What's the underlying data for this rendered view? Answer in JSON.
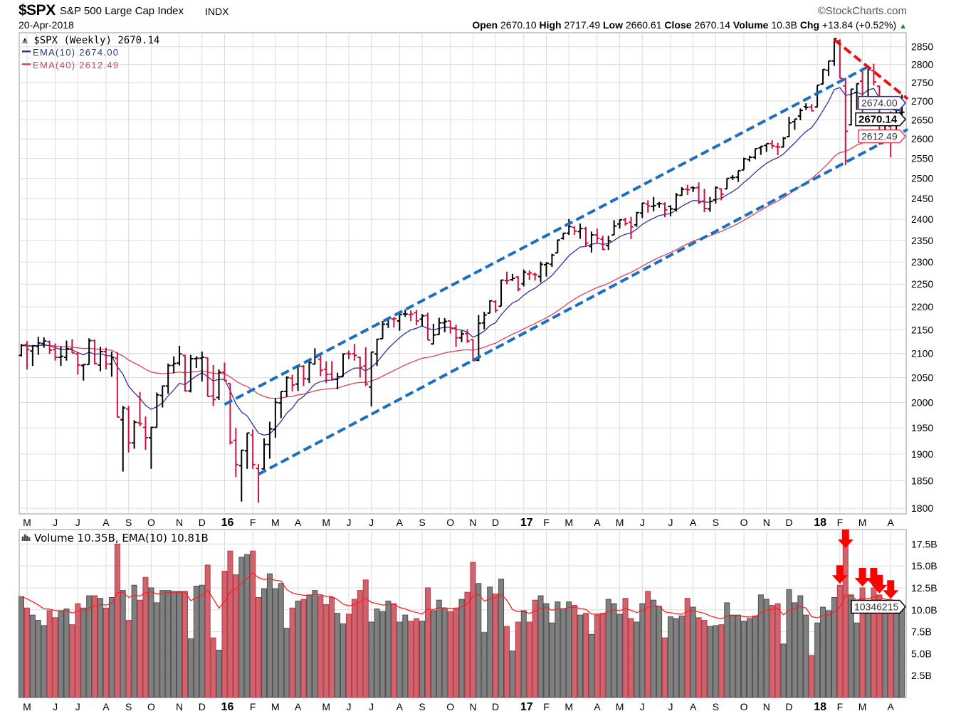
{
  "header": {
    "symbol": "$SPX",
    "name": "S&P 500 Large Cap Index",
    "exchange": "INDX",
    "brand": "©StockCharts.com",
    "date": "20-Apr-2018",
    "stats": [
      {
        "label": "Open",
        "value": "2670.10"
      },
      {
        "label": "High",
        "value": "2717.49"
      },
      {
        "label": "Low",
        "value": "2660.61"
      },
      {
        "label": "Close",
        "value": "2670.14"
      },
      {
        "label": "Volume",
        "value": "10.3B"
      },
      {
        "label": "Chg",
        "value": "+13.84 (+0.52%)"
      }
    ],
    "chg_icon": "up-triangle-icon"
  },
  "colors": {
    "up_bar": "#000000",
    "down_bar": "#d0103a",
    "ema10": "#3030a0",
    "ema40": "#e0405a",
    "vol_up": "#808080",
    "vol_down": "#d0646e",
    "vol_ema": "#ff2020",
    "channel": "#1a6fc0",
    "downtrend": "#e81010",
    "arrow": "#ff0000",
    "grid": "#dcdcdc"
  },
  "chart_data": [
    {
      "type": "ohlc",
      "title": "$SPX (Weekly) 2670.14",
      "legend": [
        {
          "name": "EMA(10)",
          "value": "2674.00",
          "label": "EMA(10) 2674.00"
        },
        {
          "name": "EMA(40)",
          "value": "2612.49",
          "label": "EMA(40) 2612.49"
        }
      ],
      "legend_placement": "top-left",
      "y_scale": "log",
      "ylim": [
        1790,
        2890
      ],
      "y_ticks": [
        1800,
        1850,
        1900,
        1950,
        2000,
        2050,
        2100,
        2150,
        2200,
        2250,
        2300,
        2350,
        2400,
        2450,
        2500,
        2550,
        2600,
        2650,
        2700,
        2750,
        2800,
        2850
      ],
      "grid": true,
      "frequency": "weekly",
      "last_date": "2018-04-20",
      "x_tick_labels": [
        "M",
        "J",
        "J",
        "A",
        "S",
        "O",
        "N",
        "D",
        "16",
        "F",
        "M",
        "A",
        "M",
        "J",
        "J",
        "A",
        "S",
        "O",
        "N",
        "D",
        "17",
        "F",
        "M",
        "A",
        "M",
        "J",
        "J",
        "A",
        "S",
        "O",
        "N",
        "D",
        "18",
        "F",
        "M",
        "A"
      ],
      "first_month": "2015-05",
      "price_tags": [
        {
          "series": "EMA(10)",
          "text": "2674.00"
        },
        {
          "series": "Close",
          "text": "2670.14"
        },
        {
          "series": "EMA(40)",
          "text": "2612.49"
        }
      ],
      "ohlc": [
        [
          2096,
          2120,
          2094,
          2117
        ],
        [
          2119,
          2126,
          2067,
          2108
        ],
        [
          2105,
          2117,
          2074,
          2116
        ],
        [
          2115,
          2135,
          2097,
          2122
        ],
        [
          2121,
          2134,
          2112,
          2126
        ],
        [
          2125,
          2127,
          2099,
          2107
        ],
        [
          2108,
          2121,
          2085,
          2092
        ],
        [
          2092,
          2115,
          2074,
          2094
        ],
        [
          2092,
          2127,
          2085,
          2110
        ],
        [
          2110,
          2130,
          2101,
          2101
        ],
        [
          2099,
          2102,
          2056,
          2076
        ],
        [
          2075,
          2078,
          2044,
          2077
        ],
        [
          2077,
          2132,
          2077,
          2127
        ],
        [
          2127,
          2129,
          2077,
          2079
        ],
        [
          2076,
          2114,
          2063,
          2104
        ],
        [
          2104,
          2112,
          2067,
          2078
        ],
        [
          2078,
          2104,
          2052,
          2092
        ],
        [
          2090,
          2103,
          1971,
          1971
        ],
        [
          1966,
          1993,
          1867,
          1989
        ],
        [
          1987,
          1993,
          1903,
          1921
        ],
        [
          1921,
          1965,
          1910,
          1961
        ],
        [
          1960,
          2021,
          1953,
          1958
        ],
        [
          1951,
          1972,
          1908,
          1931
        ],
        [
          1931,
          1952,
          1872,
          1951
        ],
        [
          1951,
          2020,
          1951,
          2015
        ],
        [
          2014,
          2034,
          1990,
          2033
        ],
        [
          2033,
          2079,
          2017,
          2075
        ],
        [
          2075,
          2094,
          2059,
          2079
        ],
        [
          2080,
          2116,
          2075,
          2099
        ],
        [
          2096,
          2097,
          2022,
          2023
        ],
        [
          2023,
          2097,
          2020,
          2089
        ],
        [
          2089,
          2094,
          2070,
          2090
        ],
        [
          2090,
          2104,
          2042,
          2092
        ],
        [
          2091,
          2091,
          2012,
          2012
        ],
        [
          2013,
          2076,
          1993,
          2006
        ],
        [
          2010,
          2067,
          2005,
          2061
        ],
        [
          2061,
          2081,
          2043,
          2044
        ],
        [
          2038,
          2038,
          1918,
          1922
        ],
        [
          1926,
          1950,
          1857,
          1880
        ],
        [
          1878,
          1908,
          1812,
          1907
        ],
        [
          1906,
          1940,
          1872,
          1940
        ],
        [
          1936,
          1947,
          1872,
          1880
        ],
        [
          1873,
          1881,
          1810,
          1865
        ],
        [
          1872,
          1930,
          1871,
          1918
        ],
        [
          1918,
          1962,
          1891,
          1948
        ],
        [
          1947,
          2009,
          1931,
          2000
        ],
        [
          1999,
          2022,
          1969,
          2022
        ],
        [
          2022,
          2053,
          2011,
          2050
        ],
        [
          2049,
          2056,
          2022,
          2035
        ],
        [
          2037,
          2075,
          2023,
          2073
        ],
        [
          2073,
          2076,
          2033,
          2048
        ],
        [
          2047,
          2084,
          2039,
          2081
        ],
        [
          2078,
          2111,
          2077,
          2092
        ],
        [
          2088,
          2099,
          2053,
          2065
        ],
        [
          2067,
          2084,
          2039,
          2057
        ],
        [
          2057,
          2084,
          2044,
          2047
        ],
        [
          2047,
          2060,
          2026,
          2052
        ],
        [
          2052,
          2100,
          2052,
          2099
        ],
        [
          2100,
          2106,
          2088,
          2099
        ],
        [
          2099,
          2120,
          2085,
          2096
        ],
        [
          2092,
          2093,
          2050,
          2071
        ],
        [
          2074,
          2113,
          2033,
          2037
        ],
        [
          2031,
          2103,
          1992,
          2103
        ],
        [
          2099,
          2131,
          2074,
          2130
        ],
        [
          2131,
          2169,
          2131,
          2162
        ],
        [
          2162,
          2176,
          2154,
          2175
        ],
        [
          2173,
          2178,
          2155,
          2174
        ],
        [
          2169,
          2183,
          2148,
          2183
        ],
        [
          2184,
          2194,
          2178,
          2184
        ],
        [
          2183,
          2192,
          2169,
          2184
        ],
        [
          2187,
          2193,
          2160,
          2169
        ],
        [
          2173,
          2184,
          2157,
          2180
        ],
        [
          2181,
          2187,
          2128,
          2128
        ],
        [
          2120,
          2163,
          2119,
          2139
        ],
        [
          2140,
          2176,
          2139,
          2165
        ],
        [
          2165,
          2175,
          2145,
          2168
        ],
        [
          2169,
          2170,
          2142,
          2153
        ],
        [
          2154,
          2161,
          2114,
          2133
        ],
        [
          2133,
          2148,
          2124,
          2141
        ],
        [
          2142,
          2151,
          2122,
          2126
        ],
        [
          2129,
          2130,
          2084,
          2085
        ],
        [
          2086,
          2182,
          2084,
          2164
        ],
        [
          2165,
          2189,
          2151,
          2182
        ],
        [
          2186,
          2214,
          2186,
          2213
        ],
        [
          2211,
          2214,
          2187,
          2192
        ],
        [
          2201,
          2260,
          2201,
          2259
        ],
        [
          2258,
          2278,
          2250,
          2258
        ],
        [
          2260,
          2273,
          2257,
          2263
        ],
        [
          2266,
          2268,
          2234,
          2239
        ],
        [
          2251,
          2283,
          2245,
          2277
        ],
        [
          2273,
          2281,
          2260,
          2275
        ],
        [
          2272,
          2276,
          2258,
          2271
        ],
        [
          2267,
          2301,
          2254,
          2295
        ],
        [
          2294,
          2300,
          2267,
          2297
        ],
        [
          2295,
          2319,
          2289,
          2316
        ],
        [
          2321,
          2352,
          2321,
          2351
        ],
        [
          2355,
          2368,
          2352,
          2367
        ],
        [
          2367,
          2401,
          2363,
          2383
        ],
        [
          2381,
          2383,
          2363,
          2372
        ],
        [
          2371,
          2390,
          2354,
          2378
        ],
        [
          2378,
          2382,
          2335,
          2344
        ],
        [
          2336,
          2371,
          2322,
          2363
        ],
        [
          2363,
          2378,
          2344,
          2355
        ],
        [
          2353,
          2361,
          2328,
          2329
        ],
        [
          2338,
          2361,
          2328,
          2349
        ],
        [
          2363,
          2398,
          2363,
          2384
        ],
        [
          2389,
          2400,
          2378,
          2399
        ],
        [
          2399,
          2404,
          2385,
          2390
        ],
        [
          2393,
          2406,
          2353,
          2382
        ],
        [
          2387,
          2418,
          2382,
          2416
        ],
        [
          2415,
          2440,
          2403,
          2439
        ],
        [
          2437,
          2446,
          2416,
          2432
        ],
        [
          2431,
          2454,
          2419,
          2433
        ],
        [
          2437,
          2442,
          2428,
          2438
        ],
        [
          2437,
          2441,
          2405,
          2423
        ],
        [
          2431,
          2434,
          2407,
          2425
        ],
        [
          2424,
          2464,
          2419,
          2459
        ],
        [
          2458,
          2478,
          2457,
          2473
        ],
        [
          2473,
          2484,
          2459,
          2472
        ],
        [
          2477,
          2480,
          2466,
          2476
        ],
        [
          2477,
          2490,
          2437,
          2441
        ],
        [
          2444,
          2474,
          2417,
          2426
        ],
        [
          2425,
          2454,
          2418,
          2443
        ],
        [
          2447,
          2480,
          2438,
          2477
        ],
        [
          2474,
          2475,
          2446,
          2461
        ],
        [
          2474,
          2500,
          2474,
          2500
        ],
        [
          2502,
          2508,
          2496,
          2502
        ],
        [
          2503,
          2519,
          2491,
          2519
        ],
        [
          2521,
          2552,
          2521,
          2549
        ],
        [
          2547,
          2557,
          2542,
          2553
        ],
        [
          2553,
          2575,
          2548,
          2575
        ],
        [
          2577,
          2582,
          2559,
          2581
        ],
        [
          2583,
          2588,
          2567,
          2588
        ],
        [
          2588,
          2597,
          2575,
          2582
        ],
        [
          2580,
          2590,
          2558,
          2579
        ],
        [
          2579,
          2605,
          2578,
          2602
        ],
        [
          2606,
          2658,
          2605,
          2642
        ],
        [
          2645,
          2652,
          2624,
          2652
        ],
        [
          2660,
          2680,
          2649,
          2675
        ],
        [
          2685,
          2694,
          2676,
          2683
        ],
        [
          2684,
          2692,
          2673,
          2674
        ],
        [
          2684,
          2743,
          2683,
          2743
        ],
        [
          2746,
          2787,
          2745,
          2786
        ],
        [
          2784,
          2810,
          2768,
          2810
        ],
        [
          2810,
          2873,
          2796,
          2873
        ],
        [
          2867,
          2871,
          2762,
          2762
        ],
        [
          2741,
          2763,
          2533,
          2620
        ],
        [
          2637,
          2733,
          2635,
          2732
        ],
        [
          2723,
          2748,
          2676,
          2747
        ],
        [
          2754,
          2789,
          2647,
          2691
        ],
        [
          2697,
          2787,
          2681,
          2786
        ],
        [
          2783,
          2802,
          2742,
          2752
        ],
        [
          2740,
          2742,
          2585,
          2588
        ],
        [
          2615,
          2659,
          2594,
          2641
        ],
        [
          2633,
          2672,
          2553,
          2604
        ],
        [
          2611,
          2674,
          2605,
          2656
        ],
        [
          2670,
          2717,
          2660,
          2670
        ]
      ],
      "annotations": [
        {
          "type": "dashed-line",
          "color": "channel",
          "from": {
            "date": "2015-12-31",
            "price": 1996
          },
          "to": {
            "date": "2018-03-09",
            "price": 2794
          }
        },
        {
          "type": "dashed-line",
          "color": "channel",
          "from": {
            "date": "2016-02-12",
            "price": 1862
          },
          "to": {
            "date": "2018-04-27",
            "price": 2625
          }
        },
        {
          "type": "dashed-line",
          "color": "downtrend",
          "from": {
            "date": "2018-01-26",
            "price": 2870
          },
          "to": {
            "date": "2018-04-27",
            "price": 2706
          }
        }
      ]
    },
    {
      "type": "bar",
      "title": "Volume 10.35B, EMA(10) 10.81B",
      "unit": "B",
      "ylim": [
        0,
        18.5
      ],
      "y_ticks": [
        "2.5B",
        "5.0B",
        "7.5B",
        "10.0B",
        "12.5B",
        "15.0B",
        "17.5B"
      ],
      "y_tick_values": [
        2.5,
        5,
        7.5,
        10,
        12.5,
        15,
        17.5
      ],
      "last_value_tag": "10346215",
      "ema_period": 10,
      "values": [
        11.5,
        10.2,
        9.4,
        8.8,
        8.2,
        9.9,
        9.1,
        9.9,
        10.1,
        8.3,
        10.7,
        10.2,
        11.6,
        11.6,
        11.3,
        10.2,
        11.4,
        17.5,
        12.2,
        8.8,
        12.8,
        11.1,
        13.7,
        12.5,
        10.8,
        12.2,
        12.2,
        12.1,
        12.1,
        12.1,
        6.7,
        12.7,
        12.8,
        15.1,
        6.8,
        5.4,
        14.4,
        16.7,
        14.0,
        16.0,
        16.3,
        16.7,
        11.4,
        12.4,
        14.1,
        12.4,
        13.0,
        7.9,
        10.2,
        11.0,
        11.2,
        11.7,
        12.2,
        11.6,
        10.6,
        11.4,
        9.6,
        8.4,
        9.5,
        11.2,
        12.2,
        13.4,
        8.6,
        10.1,
        9.8,
        11.0,
        10.7,
        8.6,
        9.4,
        8.7,
        9.0,
        8.7,
        12.5,
        9.9,
        11.1,
        10.2,
        9.8,
        10.2,
        11.2,
        12.0,
        15.4,
        13.0,
        7.4,
        12.6,
        11.8,
        13.5,
        8.1,
        5.3,
        8.6,
        9.9,
        8.6,
        11.1,
        11.6,
        10.7,
        8.5,
        10.9,
        10.1,
        10.9,
        10.5,
        9.4,
        9.6,
        7.2,
        9.4,
        9.6,
        11.2,
        10.7,
        9.5,
        11.3,
        9.0,
        8.6,
        10.7,
        12.1,
        11.1,
        10.4,
        6.8,
        9.2,
        9.0,
        9.3,
        11.3,
        10.3,
        9.1,
        8.8,
        8.1,
        8.2,
        8.3,
        10.8,
        9.4,
        9.4,
        8.7,
        9.0,
        9.3,
        11.7,
        11.2,
        10.5,
        10.7,
        6.1,
        12.3,
        10.8,
        11.6,
        9.4,
        4.8,
        8.5,
        10.3,
        9.9,
        11.4,
        12.8,
        17.5,
        11.7,
        8.5,
        12.5,
        10.9,
        12.5,
        11.7,
        9.8,
        11.1,
        9.6,
        10.35
      ],
      "arrow_annotations": [
        "2018-02-02",
        "2018-02-09",
        "2018-03-02",
        "2018-03-16",
        "2018-03-23",
        "2018-04-06"
      ]
    }
  ]
}
